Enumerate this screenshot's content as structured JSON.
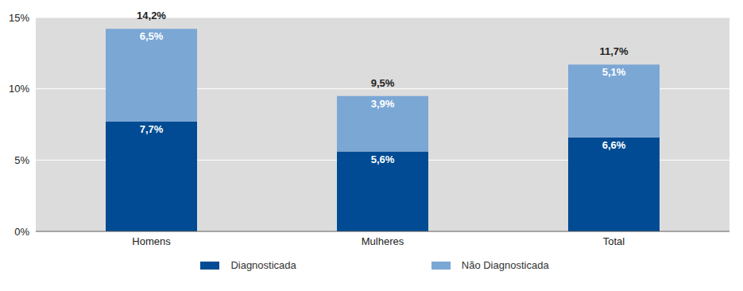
{
  "chart_data": {
    "type": "bar",
    "stacked": true,
    "categories": [
      "Homens",
      "Mulheres",
      "Total"
    ],
    "series": [
      {
        "name": "Diagnosticada",
        "color": "#004b93",
        "values": [
          7.7,
          5.6,
          6.6
        ],
        "value_labels": [
          "7,7%",
          "5,6%",
          "6,6%"
        ]
      },
      {
        "name": "Não Diagnosticada",
        "color": "#7ba7d5",
        "values": [
          6.5,
          3.9,
          5.1
        ],
        "value_labels": [
          "6,5%",
          "3,9%",
          "5,1%"
        ]
      }
    ],
    "totals": {
      "values": [
        14.2,
        9.5,
        11.7
      ],
      "value_labels": [
        "14,2%",
        "9,5%",
        "11,7%"
      ]
    },
    "ylim": [
      0,
      15
    ],
    "yticks": [
      {
        "value": 0,
        "label": "0%"
      },
      {
        "value": 5,
        "label": "5%"
      },
      {
        "value": 10,
        "label": "10%"
      },
      {
        "value": 15,
        "label": "15%"
      }
    ],
    "grid": true,
    "data_labels": true,
    "legend": "bottom"
  }
}
